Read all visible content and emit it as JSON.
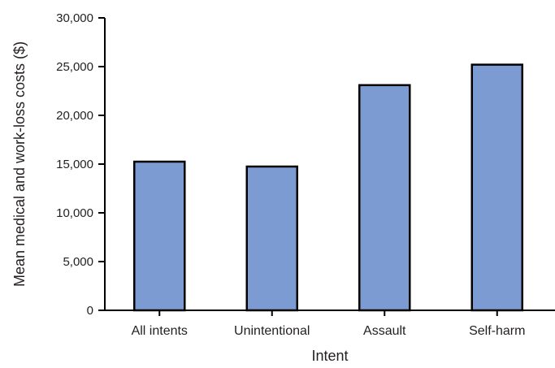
{
  "chart_data": {
    "type": "bar",
    "title": "",
    "xlabel": "Intent",
    "ylabel": "Mean medical and work-loss costs ($)",
    "categories": [
      "All intents",
      "Unintentional",
      "Assault",
      "Self-harm"
    ],
    "values": [
      15250,
      14750,
      23100,
      25200
    ],
    "ylim": [
      0,
      30000
    ],
    "yticks": [
      0,
      5000,
      10000,
      15000,
      20000,
      25000,
      30000
    ],
    "ytick_labels": [
      "0",
      "5,000",
      "10,000",
      "15,000",
      "20,000",
      "25,000",
      "30,000"
    ],
    "grid": false,
    "legend": "none",
    "colors": {
      "bar_fill": "#7b9bd2",
      "bar_stroke": "#000000",
      "axis": "#000000",
      "text": "#231f20"
    }
  }
}
